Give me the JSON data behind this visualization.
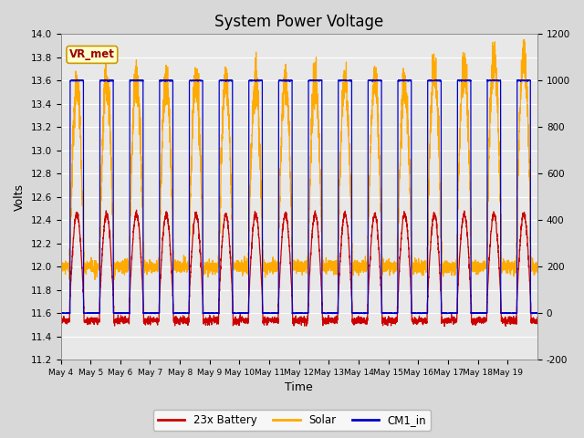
{
  "title": "System Power Voltage",
  "ylabel_left": "Volts",
  "xlabel": "Time",
  "ylim_left": [
    11.2,
    14.0
  ],
  "ylim_right": [
    -200,
    1200
  ],
  "fig_bg_color": "#d8d8d8",
  "plot_bg_color": "#e8e8e8",
  "grid_color": "white",
  "legend_labels": [
    "23x Battery",
    "Solar",
    "CM1_in"
  ],
  "legend_colors": [
    "#cc0000",
    "#ffaa00",
    "#0000cc"
  ],
  "vr_met_label": "VR_met",
  "vr_met_bg": "#ffffcc",
  "vr_met_border": "#cc9900",
  "vr_met_text_color": "#990000",
  "x_tick_labels": [
    "May 4",
    "May 5",
    "May 6",
    "May 7",
    "May 8",
    "May 9",
    "May 10",
    "May 11",
    "May 12",
    "May 13",
    "May 14",
    "May 15",
    "May 16",
    "May 17",
    "May 18",
    "May 19"
  ],
  "num_days": 16,
  "title_fontsize": 12,
  "left_ticks": [
    11.2,
    11.4,
    11.6,
    11.8,
    12.0,
    12.2,
    12.4,
    12.6,
    12.8,
    13.0,
    13.2,
    13.4,
    13.6,
    13.8,
    14.0
  ],
  "right_ticks": [
    -200,
    0,
    200,
    400,
    600,
    800,
    1000,
    1200
  ]
}
